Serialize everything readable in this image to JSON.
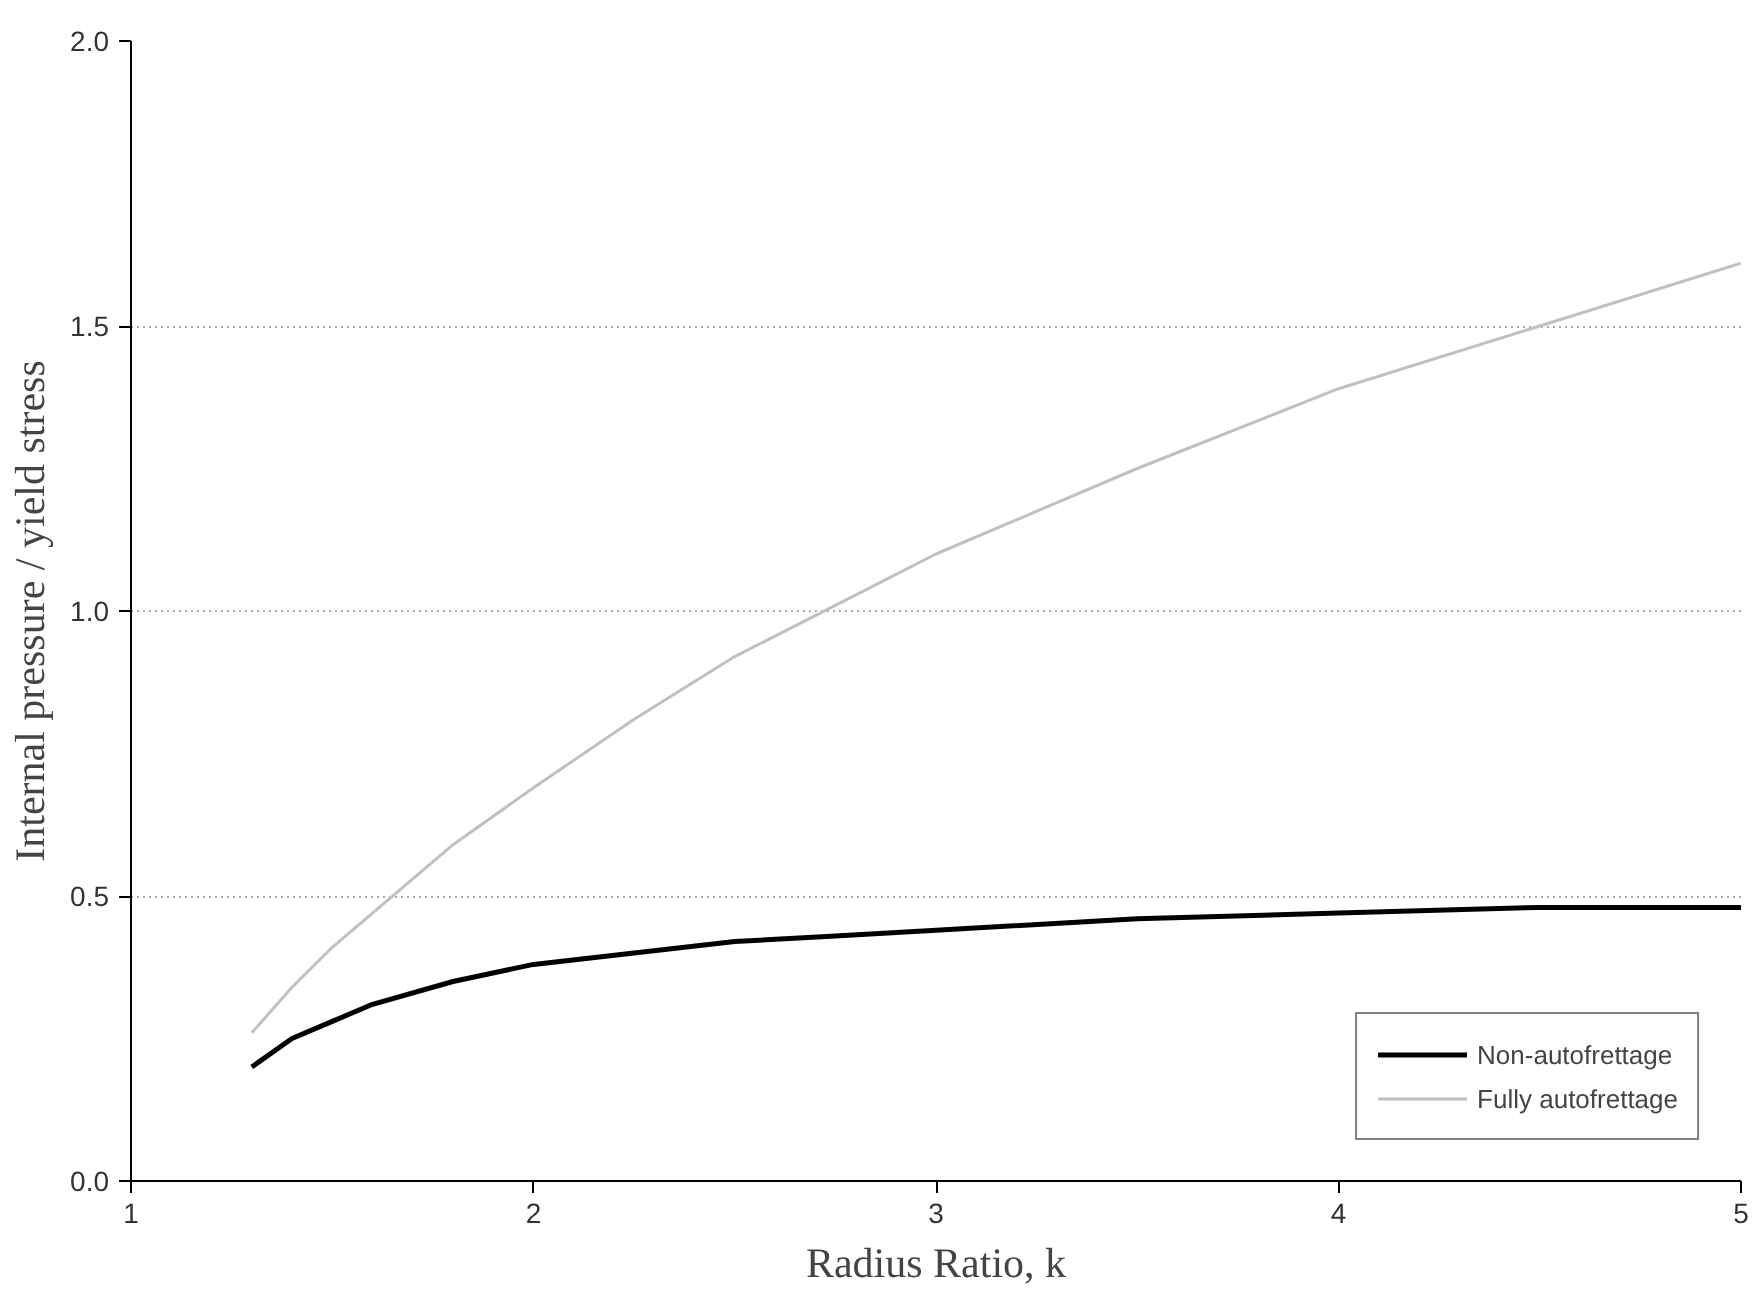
{
  "chart_data": {
    "type": "line",
    "xlabel": "Radius Ratio, k",
    "ylabel": "Internal pressure / yield stress",
    "x": [
      1.3,
      1.4,
      1.5,
      1.6,
      1.8,
      2.0,
      2.25,
      2.5,
      2.75,
      3.0,
      3.5,
      4.0,
      4.5,
      5.0
    ],
    "series": [
      {
        "name": "Non-autofrettage",
        "color": "#000000",
        "values": [
          0.2,
          0.25,
          0.28,
          0.31,
          0.35,
          0.38,
          0.4,
          0.42,
          0.43,
          0.44,
          0.46,
          0.47,
          0.48,
          0.48
        ]
      },
      {
        "name": "Fully autofrettage",
        "color": "#c0c0c0",
        "values": [
          0.26,
          0.34,
          0.41,
          0.47,
          0.59,
          0.69,
          0.81,
          0.92,
          1.01,
          1.1,
          1.25,
          1.39,
          1.5,
          1.61
        ]
      }
    ],
    "xlim": [
      1,
      5
    ],
    "xticks": [
      1,
      2,
      3,
      4,
      5
    ],
    "ylim": [
      0,
      2
    ],
    "yticks": [
      {
        "value": 0,
        "label": "0.0"
      },
      {
        "value": 0.5,
        "label": "0.5"
      },
      {
        "value": 1,
        "label": "1.0"
      },
      {
        "value": 1.5,
        "label": "1.5"
      },
      {
        "value": 2,
        "label": "2.0"
      }
    ],
    "grid": "y",
    "legend": "bottom right",
    "marker": "none",
    "line_style": "solid"
  }
}
